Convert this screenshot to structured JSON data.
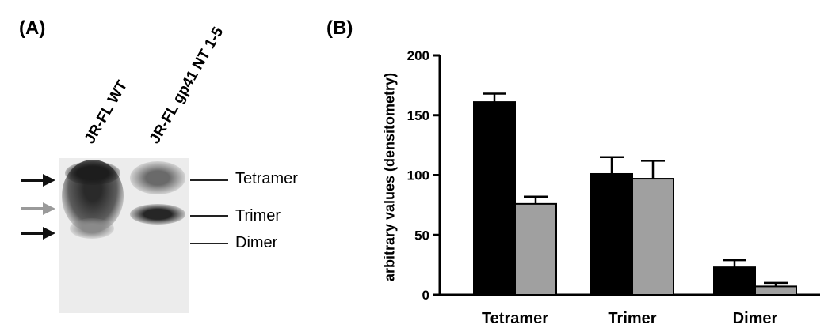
{
  "panels": {
    "a_label": "(A)",
    "b_label": "(B)"
  },
  "blot": {
    "lanes": [
      "JR-FL  WT",
      "JR-FL  gp41 NT 1-5"
    ],
    "bands": [
      "Tetramer",
      "Trimer",
      "Dimer"
    ],
    "arrow_colors": [
      "#111111",
      "#9a9a9a",
      "#111111"
    ]
  },
  "chart_data": {
    "type": "bar",
    "categories": [
      "Tetramer",
      "Trimer",
      "Dimer"
    ],
    "series": [
      {
        "color": "#000000",
        "values": [
          161,
          101,
          23
        ],
        "errors": [
          7,
          14,
          6
        ]
      },
      {
        "color": "#a0a0a0",
        "values": [
          76,
          97,
          7
        ],
        "errors": [
          6,
          15,
          3
        ]
      }
    ],
    "xlabel": "",
    "ylabel": "arbitrary values (densitometry)",
    "ylim": [
      0,
      200
    ],
    "yticks": [
      0,
      50,
      100,
      150,
      200
    ],
    "grid": false,
    "legend": "none"
  }
}
